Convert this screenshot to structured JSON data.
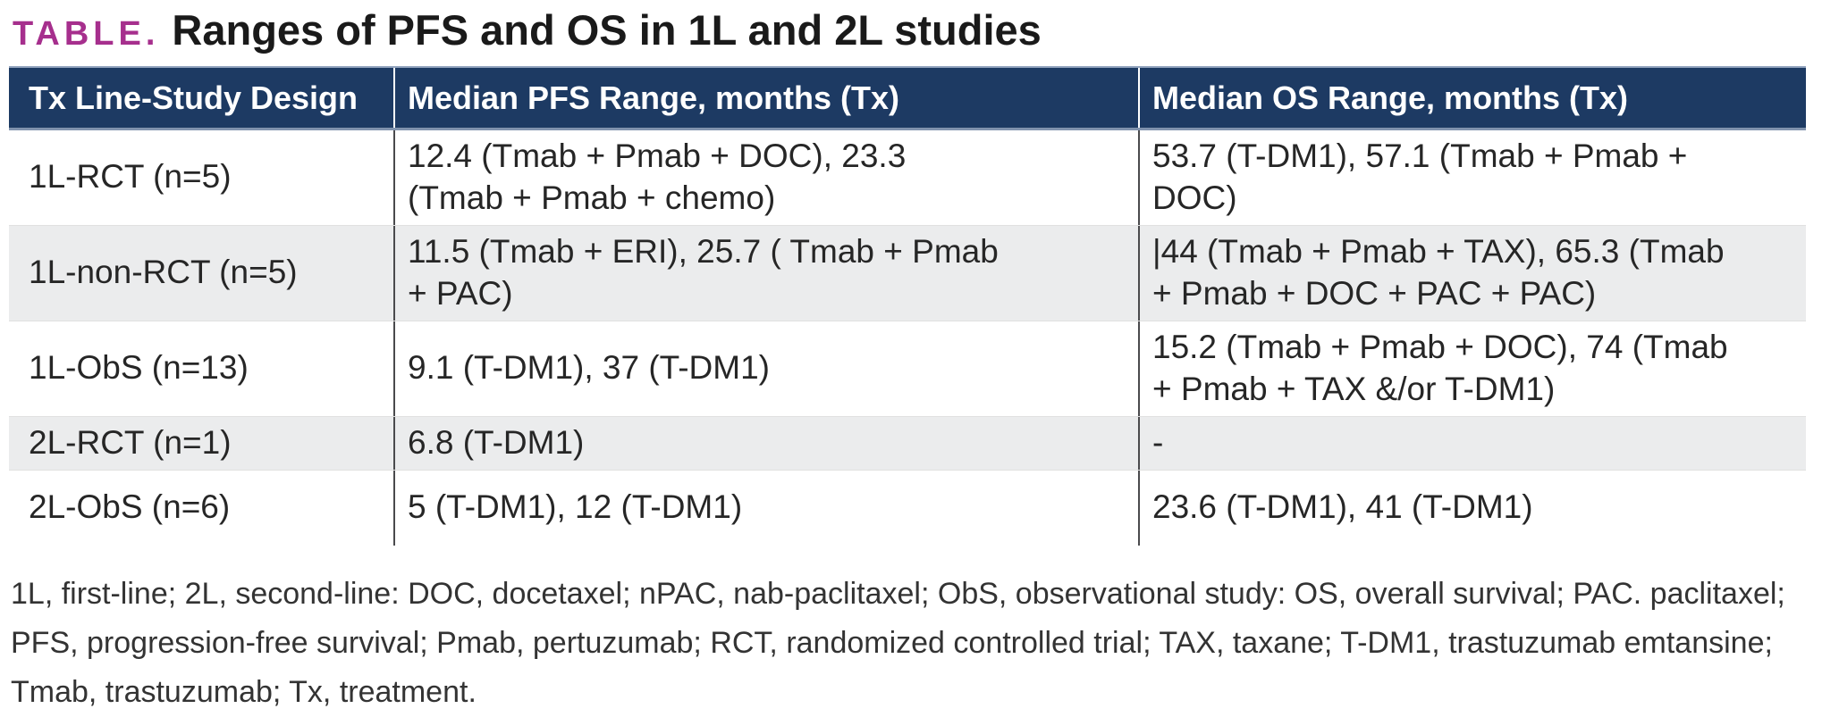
{
  "title": {
    "label": "TABLE.",
    "text": "Ranges of PFS and OS in 1L and 2L studies"
  },
  "colors": {
    "header_bg": "#1D3A63",
    "title_label_accent": "#A62F8D",
    "alt_row_bg": "#EBECED",
    "body_text": "#262626"
  },
  "table": {
    "columns": [
      {
        "label": "Tx Line-Study Design"
      },
      {
        "label": "Median PFS Range, months (Tx)"
      },
      {
        "label": "Median OS Range, months (Tx)"
      }
    ],
    "rows": [
      {
        "design": "1L-RCT (n=5)",
        "pfs": "12.4 (Tmab + Pmab + DOC), 23.3\n(Tmab + Pmab + chemo)",
        "os": "53.7 (T-DM1), 57.1 (Tmab + Pmab +\nDOC)"
      },
      {
        "design": "1L-non-RCT (n=5)",
        "pfs": "11.5 (Tmab + ERI), 25.7 ( Tmab + Pmab\n+ PAC)",
        "os": "|44 (Tmab + Pmab + TAX), 65.3 (Tmab\n+ Pmab + DOC + PAC + PAC)"
      },
      {
        "design": "1L-ObS (n=13)",
        "pfs": "9.1 (T-DM1), 37 (T-DM1)",
        "os": "15.2 (Tmab + Pmab + DOC), 74 (Tmab\n+ Pmab + TAX &/or T-DM1)"
      },
      {
        "design": "2L-RCT (n=1)",
        "pfs": "6.8 (T-DM1)",
        "os": "-"
      },
      {
        "design": "2L-ObS (n=6)",
        "pfs": "5 (T-DM1), 12 (T-DM1)",
        "os": "23.6 (T-DM1), 41 (T-DM1)"
      }
    ]
  },
  "footnote": "1L, first-line; 2L, second-line: DOC, docetaxel; nPAC, nab-paclitaxel; ObS, observational study: OS, overall survival; PAC. paclitaxel;\nPFS, progression-free survival; Pmab, pertuzumab; RCT, randomized controlled trial; TAX, taxane; T-DM1, trastuzumab emtansine;\nTmab, trastuzumab; Tx, treatment."
}
